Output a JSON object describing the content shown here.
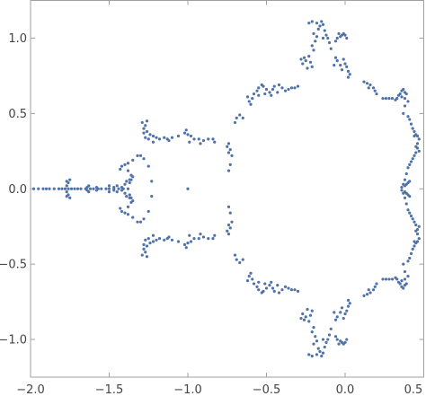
{
  "chart_data": {
    "type": "scatter",
    "title": "",
    "xlabel": "",
    "ylabel": "",
    "xlim": [
      -2.0,
      0.5
    ],
    "ylim": [
      -1.25,
      1.25
    ],
    "grid": false,
    "legend": "none",
    "marker_color": "#4f72a9",
    "x_ticks": [
      {
        "value": -2.0,
        "label": "−2.0"
      },
      {
        "value": -1.5,
        "label": "−1.5"
      },
      {
        "value": -1.0,
        "label": "−1.0"
      },
      {
        "value": -0.5,
        "label": "−0.5"
      },
      {
        "value": 0.0,
        "label": "0.0"
      },
      {
        "value": 0.5,
        "label": "0.5"
      }
    ],
    "y_ticks": [
      {
        "value": 1.0,
        "label": "1.0"
      },
      {
        "value": 0.5,
        "label": "0.5"
      },
      {
        "value": 0.0,
        "label": "0.0"
      },
      {
        "value": -0.5,
        "label": "−0.5"
      },
      {
        "value": -1.0,
        "label": "−1.0"
      }
    ],
    "points_upper_half": [
      [
        -1.98,
        0.0
      ],
      [
        -1.95,
        0.0
      ],
      [
        -1.92,
        0.0
      ],
      [
        -1.9,
        0.0
      ],
      [
        -1.88,
        0.0
      ],
      [
        -1.85,
        0.0
      ],
      [
        -1.82,
        0.0
      ],
      [
        -1.8,
        0.0
      ],
      [
        -1.78,
        0.0
      ],
      [
        -1.76,
        0.0
      ],
      [
        -1.74,
        0.0
      ],
      [
        -1.72,
        0.0
      ],
      [
        -1.7,
        0.0
      ],
      [
        -1.68,
        0.0
      ],
      [
        -1.65,
        0.0
      ],
      [
        -1.62,
        0.0
      ],
      [
        -1.6,
        0.0
      ],
      [
        -1.57,
        0.0
      ],
      [
        -1.55,
        0.0
      ],
      [
        -1.52,
        0.0
      ],
      [
        -1.5,
        0.0
      ],
      [
        -1.47,
        0.0
      ],
      [
        -1.44,
        0.0
      ],
      [
        -1.41,
        0.0
      ],
      [
        -1.38,
        0.0
      ],
      [
        -1.0,
        0.0
      ],
      [
        -1.77,
        0.02
      ],
      [
        -1.76,
        0.04
      ],
      [
        -1.75,
        0.06
      ],
      [
        -1.77,
        0.05
      ],
      [
        -1.64,
        0.01
      ],
      [
        -1.63,
        0.02
      ],
      [
        -1.58,
        0.01
      ],
      [
        -1.5,
        0.02
      ],
      [
        -1.47,
        0.01
      ],
      [
        -1.45,
        0.02
      ],
      [
        -1.42,
        0.01
      ],
      [
        -1.4,
        0.03
      ],
      [
        -1.37,
        0.04
      ],
      [
        -1.36,
        0.06
      ],
      [
        -1.35,
        0.08
      ],
      [
        -1.36,
        0.09
      ],
      [
        -1.38,
        0.12
      ],
      [
        -1.42,
        0.15
      ],
      [
        -1.43,
        0.13
      ],
      [
        -1.4,
        0.16
      ],
      [
        -1.38,
        0.17
      ],
      [
        -1.35,
        0.19
      ],
      [
        -1.32,
        0.22
      ],
      [
        -1.37,
        0.06
      ],
      [
        -1.39,
        0.05
      ],
      [
        -1.28,
        0.4
      ],
      [
        -1.27,
        0.42
      ],
      [
        -1.29,
        0.44
      ],
      [
        -1.26,
        0.45
      ],
      [
        -1.28,
        0.37
      ],
      [
        -1.26,
        0.38
      ],
      [
        -1.24,
        0.36
      ],
      [
        -1.27,
        0.34
      ],
      [
        -1.25,
        0.33
      ],
      [
        -1.22,
        0.35
      ],
      [
        -1.2,
        0.34
      ],
      [
        -1.18,
        0.33
      ],
      [
        -1.15,
        0.34
      ],
      [
        -1.13,
        0.33
      ],
      [
        -1.1,
        0.34
      ],
      [
        -1.06,
        0.35
      ],
      [
        -1.02,
        0.37
      ],
      [
        -1.01,
        0.39
      ],
      [
        -1.0,
        0.36
      ],
      [
        -0.98,
        0.35
      ],
      [
        -0.96,
        0.33
      ],
      [
        -0.93,
        0.33
      ],
      [
        -0.9,
        0.32
      ],
      [
        -0.87,
        0.33
      ],
      [
        -0.84,
        0.33
      ],
      [
        -0.83,
        0.31
      ],
      [
        -1.22,
        0.31
      ],
      [
        -1.12,
        0.32
      ],
      [
        -0.99,
        0.31
      ],
      [
        -0.92,
        0.3
      ],
      [
        -1.3,
        0.22
      ],
      [
        -1.28,
        0.2
      ],
      [
        -1.25,
        0.15
      ],
      [
        -1.23,
        0.05
      ],
      [
        -0.74,
        0.3
      ],
      [
        -0.75,
        0.28
      ],
      [
        -0.73,
        0.26
      ],
      [
        -0.74,
        0.24
      ],
      [
        -0.72,
        0.22
      ],
      [
        -0.73,
        0.16
      ],
      [
        -0.74,
        0.12
      ],
      [
        -0.7,
        0.44
      ],
      [
        -0.69,
        0.47
      ],
      [
        -0.67,
        0.49
      ],
      [
        -0.65,
        0.47
      ],
      [
        -0.6,
        0.56
      ],
      [
        -0.61,
        0.58
      ],
      [
        -0.59,
        0.6
      ],
      [
        -0.62,
        0.61
      ],
      [
        -0.58,
        0.63
      ],
      [
        -0.56,
        0.65
      ],
      [
        -0.55,
        0.67
      ],
      [
        -0.53,
        0.69
      ],
      [
        -0.52,
        0.68
      ],
      [
        -0.5,
        0.66
      ],
      [
        -0.48,
        0.64
      ],
      [
        -0.46,
        0.66
      ],
      [
        -0.45,
        0.68
      ],
      [
        -0.42,
        0.69
      ],
      [
        -0.4,
        0.67
      ],
      [
        -0.38,
        0.65
      ],
      [
        -0.36,
        0.66
      ],
      [
        -0.34,
        0.67
      ],
      [
        -0.32,
        0.67
      ],
      [
        -0.3,
        0.68
      ],
      [
        -0.55,
        0.62
      ],
      [
        -0.51,
        0.63
      ],
      [
        -0.47,
        0.62
      ],
      [
        -0.43,
        0.64
      ],
      [
        -0.27,
        0.83
      ],
      [
        -0.28,
        0.86
      ],
      [
        -0.26,
        0.87
      ],
      [
        -0.25,
        0.85
      ],
      [
        -0.23,
        0.88
      ],
      [
        -0.22,
        0.84
      ],
      [
        -0.21,
        0.81
      ],
      [
        -0.24,
        0.8
      ],
      [
        -0.2,
        0.92
      ],
      [
        -0.21,
        0.95
      ],
      [
        -0.19,
        0.98
      ],
      [
        -0.18,
        1.01
      ],
      [
        -0.2,
        1.03
      ],
      [
        -0.17,
        1.06
      ],
      [
        -0.16,
        1.08
      ],
      [
        -0.18,
        1.1
      ],
      [
        -0.21,
        1.11
      ],
      [
        -0.23,
        1.1
      ],
      [
        -0.15,
        1.11
      ],
      [
        -0.14,
        1.09
      ],
      [
        -0.13,
        1.05
      ],
      [
        -0.12,
        1.02
      ],
      [
        -0.11,
        1.0
      ],
      [
        -0.14,
        1.0
      ],
      [
        -0.1,
        0.97
      ],
      [
        -0.09,
        0.93
      ],
      [
        -0.06,
        0.98
      ],
      [
        -0.05,
        1.0
      ],
      [
        -0.03,
        1.01
      ],
      [
        -0.02,
        1.02
      ],
      [
        -0.01,
        1.03
      ],
      [
        0.0,
        1.02
      ],
      [
        -0.04,
        1.03
      ],
      [
        0.01,
        1.0
      ],
      [
        -0.06,
        0.87
      ],
      [
        -0.05,
        0.85
      ],
      [
        -0.03,
        0.82
      ],
      [
        -0.02,
        0.79
      ],
      [
        0.0,
        0.83
      ],
      [
        0.01,
        0.81
      ],
      [
        0.02,
        0.78
      ],
      [
        0.03,
        0.76
      ],
      [
        0.02,
        0.74
      ],
      [
        -0.01,
        0.86
      ],
      [
        -0.07,
        0.82
      ],
      [
        0.12,
        0.71
      ],
      [
        0.14,
        0.7
      ],
      [
        0.16,
        0.69
      ],
      [
        0.18,
        0.67
      ],
      [
        0.19,
        0.65
      ],
      [
        0.15,
        0.67
      ],
      [
        0.2,
        0.63
      ],
      [
        0.24,
        0.6
      ],
      [
        0.26,
        0.6
      ],
      [
        0.28,
        0.6
      ],
      [
        0.3,
        0.6
      ],
      [
        0.32,
        0.59
      ],
      [
        0.33,
        0.6
      ],
      [
        0.34,
        0.62
      ],
      [
        0.35,
        0.63
      ],
      [
        0.36,
        0.65
      ],
      [
        0.37,
        0.66
      ],
      [
        0.38,
        0.64
      ],
      [
        0.39,
        0.63
      ],
      [
        0.36,
        0.61
      ],
      [
        0.38,
        0.6
      ],
      [
        0.4,
        0.58
      ],
      [
        0.38,
        0.55
      ],
      [
        0.37,
        0.5
      ],
      [
        0.4,
        0.48
      ],
      [
        0.41,
        0.46
      ],
      [
        0.42,
        0.43
      ],
      [
        0.43,
        0.4
      ],
      [
        0.44,
        0.38
      ],
      [
        0.45,
        0.36
      ],
      [
        0.46,
        0.35
      ],
      [
        0.47,
        0.33
      ],
      [
        0.44,
        0.35
      ],
      [
        0.46,
        0.3
      ],
      [
        0.45,
        0.28
      ],
      [
        0.46,
        0.27
      ],
      [
        0.47,
        0.25
      ],
      [
        0.45,
        0.24
      ],
      [
        0.44,
        0.22
      ],
      [
        0.43,
        0.2
      ],
      [
        0.42,
        0.18
      ],
      [
        0.41,
        0.16
      ],
      [
        0.4,
        0.14
      ],
      [
        0.39,
        0.1
      ],
      [
        0.38,
        0.06
      ],
      [
        0.37,
        0.03
      ],
      [
        0.36,
        0.01
      ],
      [
        0.38,
        0.02
      ],
      [
        0.39,
        0.03
      ],
      [
        0.4,
        0.04
      ],
      [
        0.41,
        0.05
      ]
    ]
  }
}
